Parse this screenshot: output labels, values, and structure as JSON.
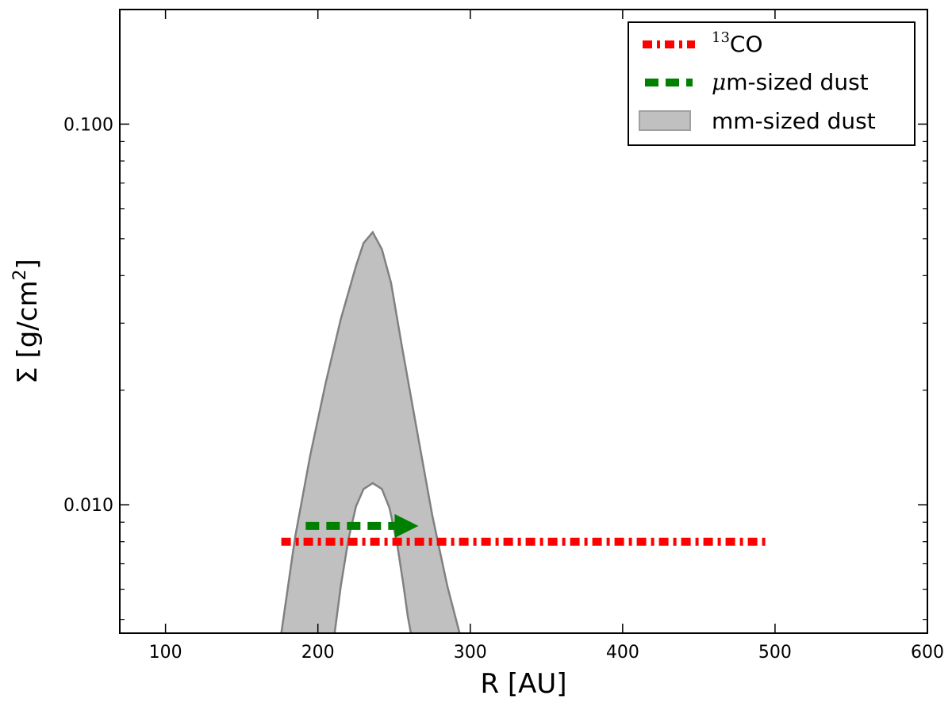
{
  "chart_data": {
    "type": "line",
    "xlabel": "R [AU]",
    "ylabel": {
      "prefix": "Σ [g/cm",
      "sup": "2",
      "suffix": "]"
    },
    "xlim": [
      70,
      600
    ],
    "ylim": [
      0.0046,
      0.2
    ],
    "yscale": "log",
    "xticks": [
      100,
      200,
      300,
      400,
      500,
      600
    ],
    "yticks": [
      {
        "value": 0.01,
        "label": "0.010"
      },
      {
        "value": 0.1,
        "label": "0.100"
      }
    ],
    "grid": false,
    "legend_position": "top-right",
    "series": [
      {
        "name_sup": "13",
        "name": "CO",
        "kind": "line",
        "style": "dash-dot",
        "color": "#ff0000",
        "x": [
          176,
          494
        ],
        "y": [
          0.008,
          0.008
        ]
      },
      {
        "name_greek": "μ",
        "name": "m-sized dust",
        "kind": "arrow",
        "style": "dashed",
        "color": "#008000",
        "x": [
          192,
          266
        ],
        "y": [
          0.0088,
          0.0088
        ]
      },
      {
        "name": "mm-sized dust",
        "kind": "band",
        "color": "#c0c0c0",
        "edge_color": "#808080",
        "upper": {
          "x": [
            176,
            185,
            195,
            205,
            215,
            225,
            230,
            236,
            242,
            248,
            255,
            265,
            275,
            285,
            293
          ],
          "y": [
            0.0046,
            0.0082,
            0.0135,
            0.0208,
            0.0307,
            0.0424,
            0.0487,
            0.052,
            0.0469,
            0.0383,
            0.0263,
            0.0157,
            0.0094,
            0.0061,
            0.0046
          ]
        },
        "lower": {
          "x": [
            211,
            215,
            220,
            225,
            230,
            236,
            242,
            247,
            252,
            256,
            259,
            261
          ],
          "y": [
            0.0046,
            0.0061,
            0.0081,
            0.0099,
            0.011,
            0.0114,
            0.011,
            0.0098,
            0.0079,
            0.0062,
            0.0051,
            0.0046
          ]
        }
      }
    ]
  }
}
